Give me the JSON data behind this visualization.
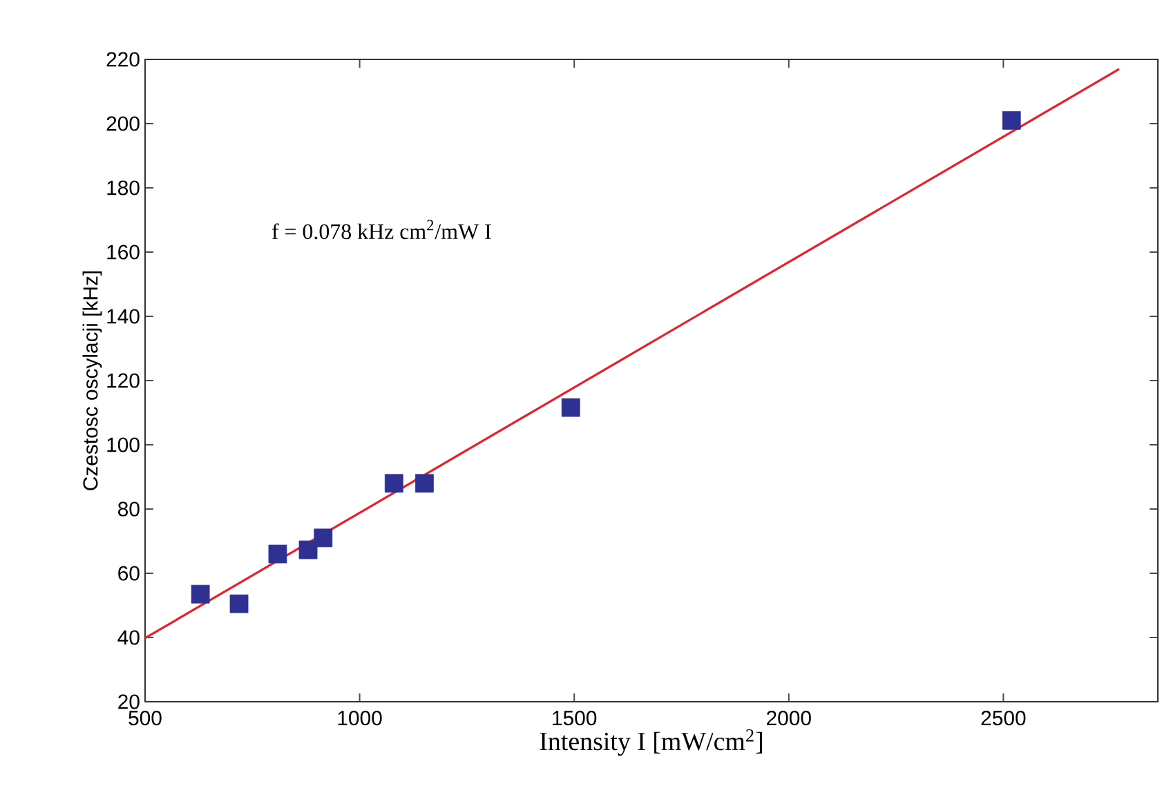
{
  "chart_data": {
    "type": "scatter",
    "xlabel": "Intensity I [mW/cm$^{2}$]",
    "ylabel": "Czestosc oscylacji [kHz]",
    "annotations": [
      "f = 0.078 kHz cm$^{2}$/mW I"
    ],
    "series": [
      {
        "color": "#2e3192",
        "marker": "square",
        "x": [
          629,
          719,
          809,
          880,
          915,
          1080,
          1151,
          1492,
          2519
        ],
        "values": [
          53.5,
          50.5,
          66,
          67.3,
          71,
          88,
          88,
          111.6,
          201
        ]
      },
      {
        "type": "line",
        "color": "#e8202a",
        "line_style": "solid",
        "marker": "none",
        "x": [
          500,
          2770
        ],
        "values": [
          39.8,
          217
        ]
      }
    ],
    "xlim": [
      500,
      2860
    ],
    "ylim": [
      20,
      220
    ],
    "xticks": [
      500,
      1000,
      1500,
      2000,
      2500
    ],
    "yticks": [
      20,
      40,
      60,
      80,
      100,
      120,
      140,
      160,
      180,
      200,
      220
    ],
    "grid": false
  }
}
